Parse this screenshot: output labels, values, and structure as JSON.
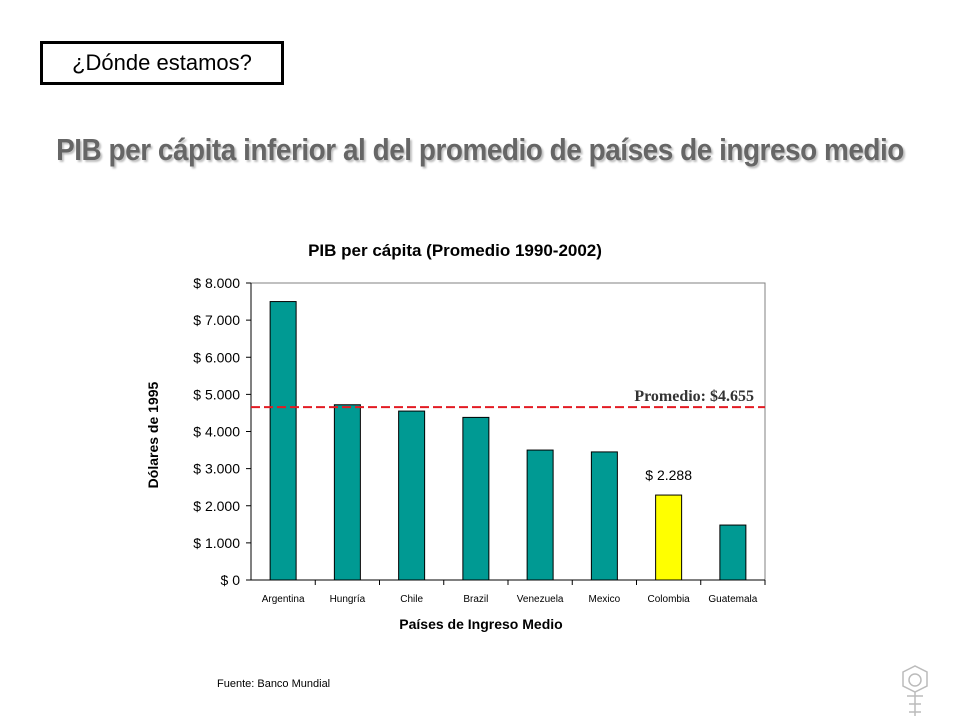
{
  "header": {
    "section_label": "¿Dónde estamos?",
    "headline": "PIB per cápita inferior al del promedio de países de ingreso medio"
  },
  "footer": {
    "source": "Fuente: Banco Mundial"
  },
  "colors": {
    "bar": "#009a93",
    "highlight": "#ffff00",
    "average_line": "#e31b23",
    "headline": "#666666"
  },
  "chart_data": {
    "type": "bar",
    "title": "PIB per cápita (Promedio 1990-2002)",
    "xlabel": "Países de Ingreso Medio",
    "ylabel": "Dólares de 1995",
    "categories": [
      "Argentina",
      "Hungría",
      "Chile",
      "Brazil",
      "Venezuela",
      "Mexico",
      "Colombia",
      "Guatemala"
    ],
    "values": [
      7500,
      4720,
      4550,
      4380,
      3500,
      3450,
      2288,
      1480
    ],
    "highlight_category": "Colombia",
    "data_labels": [
      {
        "category": "Colombia",
        "text": "$ 2.288"
      }
    ],
    "ylim": [
      0,
      8000
    ],
    "yticks": [
      0,
      1000,
      2000,
      3000,
      4000,
      5000,
      6000,
      7000,
      8000
    ],
    "ytick_labels": [
      "$ 0",
      "$ 1.000",
      "$ 2.000",
      "$ 3.000",
      "$ 4.000",
      "$ 5.000",
      "$ 6.000",
      "$ 7.000",
      "$ 8.000"
    ],
    "reference_line": {
      "value": 4655,
      "label": "Promedio: $4.655"
    },
    "grid": false,
    "legend": "none"
  }
}
